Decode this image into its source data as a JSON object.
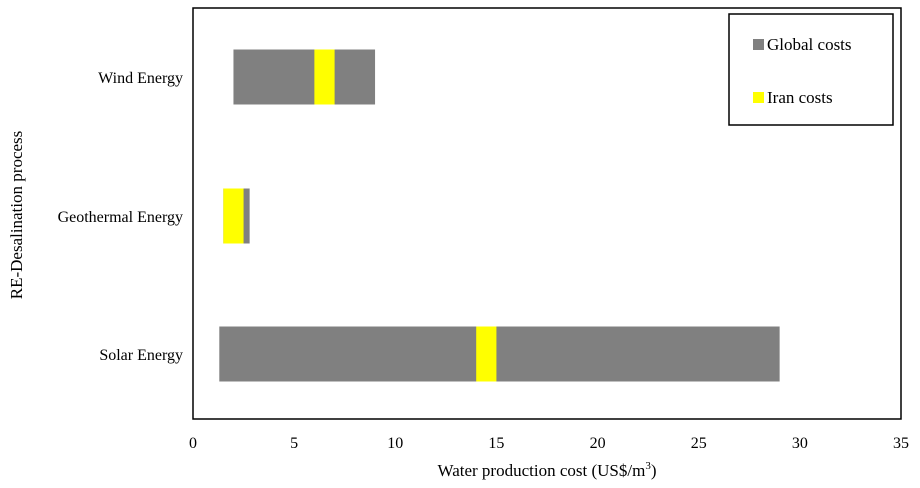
{
  "chart_data": {
    "type": "bar",
    "orientation": "horizontal-range",
    "title": "",
    "xlabel": "Water production cost (US$/m",
    "xlabel_superscript": "3",
    "xlabel_suffix": ")",
    "ylabel": "RE-Desalination process",
    "xlim": [
      0,
      35
    ],
    "xticks": [
      "0",
      "5",
      "10",
      "15",
      "20",
      "25",
      "30",
      "35"
    ],
    "categories": [
      "Wind Energy",
      "Geothermal Energy",
      "Solar Energy"
    ],
    "series": [
      {
        "name": "Global costs",
        "color": "#808080",
        "ranges": [
          [
            2.0,
            9.0
          ],
          [
            1.5,
            2.8
          ],
          [
            1.3,
            29.0
          ]
        ]
      },
      {
        "name": "Iran costs",
        "color": "#ffff00",
        "ranges": [
          [
            6.0,
            7.0
          ],
          [
            1.5,
            2.5
          ],
          [
            14.0,
            15.0
          ]
        ]
      }
    ],
    "legend_position": "top-right",
    "grid": false
  }
}
